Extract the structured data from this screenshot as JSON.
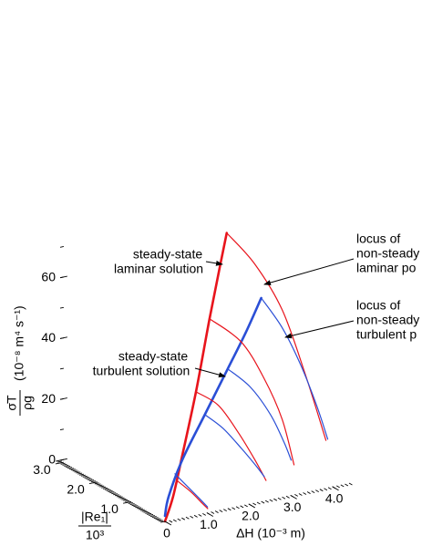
{
  "chart_data": {
    "type": "line3d",
    "xlabel": "ΔH  (10⁻³ m)",
    "ylabel": {
      "numerator": "|Re₁|",
      "denominator": "10³"
    },
    "zlabel": {
      "numerator": "σ̇T",
      "denominator": "ρg",
      "unit": "(10⁻⁸ m⁴ s⁻¹)"
    },
    "xlim": [
      0,
      4.4
    ],
    "ylim": [
      0,
      3.1
    ],
    "zlim": [
      0,
      65
    ],
    "xticks": [
      0,
      {
        "value": 1,
        "label": "1.0"
      },
      {
        "value": 2,
        "label": "2.0"
      },
      {
        "value": 3,
        "label": "3.0"
      },
      {
        "value": 4,
        "label": "4.0"
      }
    ],
    "yticks": [
      {
        "value": 1,
        "label": "1.0"
      },
      {
        "value": 2,
        "label": "2.0"
      },
      {
        "value": 3,
        "label": "3.0"
      }
    ],
    "zticks": [
      0,
      20,
      40,
      60
    ],
    "xminor": 0.1,
    "yminor": 0.05,
    "zminor": 10,
    "annotations": [
      {
        "lines": [
          "steady-state",
          "laminar solution"
        ]
      },
      {
        "lines": [
          "steady-state",
          "turbulent solution"
        ]
      },
      {
        "lines": [
          "locus of",
          "non-steady",
          "laminar po"
        ]
      },
      {
        "lines": [
          "locus of",
          "non-steady",
          "turbulent p"
        ]
      }
    ],
    "series": [
      {
        "color": "#e8141c",
        "width": 2.6,
        "x": [
          0,
          0.4,
          0.965,
          1.83,
          2.77,
          3.49,
          3.9
        ],
        "y": [
          0,
          0.256,
          0.684,
          1.348,
          2.11,
          2.68,
          3.0
        ],
        "z": [
          0,
          5.3,
          14.4,
          28.6,
          45.0,
          57.2,
          64.2
        ]
      },
      {
        "color": "#2b4fd6",
        "width": 2.6,
        "x": [
          0.046,
          0.293,
          0.926,
          1.85,
          2.78,
          3.52,
          4.18
        ],
        "y": [
          0.057,
          0.256,
          0.636,
          1.111,
          1.585,
          1.965,
          2.326
        ],
        "z": [
          1.3,
          5.6,
          13.4,
          22.6,
          31.9,
          39.3,
          46.4
        ]
      },
      {
        "color": "#e8141c",
        "width": 1.2,
        "x": [
          3.9,
          4.31,
          4.58,
          4.59,
          4.53
        ],
        "y": [
          3.0,
          2.677,
          2.203,
          1.538,
          0.845
        ],
        "z": [
          64.2,
          54.9,
          42.2,
          25.5,
          8.2
        ]
      },
      {
        "color": "#2b4fd6",
        "width": 1.2,
        "x": [
          4.18,
          4.43,
          4.56,
          4.6,
          4.58
        ],
        "y": [
          2.326,
          2.013,
          1.633,
          1.206,
          0.854
        ],
        "z": [
          46.4,
          37.9,
          27.9,
          17.1,
          8.4
        ]
      },
      {
        "color": "#e8141c",
        "width": 1.2,
        "x": [
          2.77,
          3.33,
          3.57,
          3.66,
          3.56
        ],
        "y": [
          2.11,
          1.87,
          1.491,
          1.063,
          0.589
        ],
        "z": [
          45.0,
          37.4,
          27.2,
          16.2,
          4.6
        ]
      },
      {
        "color": "#2b4fd6",
        "width": 1.2,
        "x": [
          2.78,
          3.17,
          3.42,
          3.51,
          3.53
        ],
        "y": [
          1.585,
          1.396,
          1.111,
          0.826,
          0.636
        ],
        "z": [
          31.9,
          26.0,
          18.1,
          10.7,
          5.9
        ]
      },
      {
        "color": "#e8141c",
        "width": 1.2,
        "x": [
          1.83,
          2.25,
          2.5,
          2.67,
          2.76
        ],
        "y": [
          1.348,
          1.206,
          0.921,
          0.636,
          0.427
        ],
        "z": [
          28.6,
          23.9,
          16.0,
          8.3,
          2.8
        ]
      },
      {
        "color": "#2b4fd6",
        "width": 1.2,
        "x": [
          1.85,
          2.17,
          2.44,
          2.63,
          2.75
        ],
        "y": [
          1.111,
          0.968,
          0.76,
          0.589,
          0.465
        ],
        "z": [
          22.6,
          18.1,
          12.1,
          7.3,
          3.8
        ]
      },
      {
        "color": "#e8141c",
        "width": 1.2,
        "x": [
          0.64,
          0.876,
          1.04,
          1.13
        ],
        "y": [
          0.418,
          0.304,
          0.19,
          0.133
        ],
        "z": [
          8.7,
          5.1,
          1.8,
          0.1
        ]
      },
      {
        "color": "#2b4fd6",
        "width": 1.2,
        "x": [
          0.637,
          0.848,
          1.03,
          1.14
        ],
        "y": [
          0.494,
          0.351,
          0.228,
          0.152
        ],
        "z": [
          10.6,
          6.4,
          2.8,
          0.5
        ]
      }
    ]
  }
}
